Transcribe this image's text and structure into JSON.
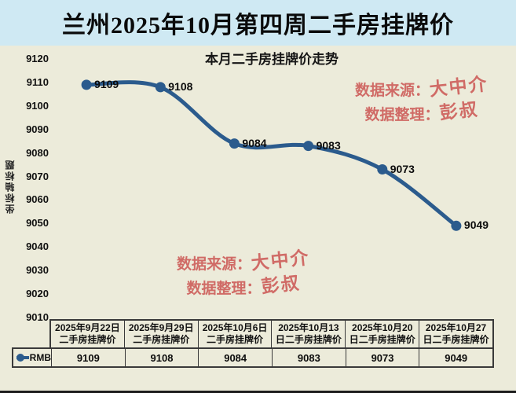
{
  "header": {
    "title": "兰州2025年10月第四周二手房挂牌价"
  },
  "chart_data": {
    "type": "line",
    "title": "本月二手房挂牌价走势",
    "y_axis_title": "坐标轴标题",
    "legend": "RMB",
    "legend_position": "data-table-left",
    "grid": false,
    "categories": [
      "2025年9月22日\n二手房挂牌价",
      "2025年9月29日\n二手房挂牌价",
      "2025年10月6日\n二手房挂牌价",
      "2025年10月13\n日二手房挂牌价",
      "2025年10月20\n日二手房挂牌价",
      "2025年10月27\n日二手房挂牌价"
    ],
    "values": [
      9109,
      9108,
      9084,
      9083,
      9073,
      9049
    ],
    "yticks": [
      9120,
      9110,
      9100,
      9090,
      9080,
      9070,
      9060,
      9050,
      9040,
      9030,
      9020,
      9010
    ],
    "ylim": [
      9010,
      9120
    ],
    "line_color": "#2b5b8d"
  },
  "watermark": {
    "source_label": "数据来源：",
    "source_value": "大中介",
    "compiler_label": "数据整理：",
    "compiler_value": "彭叔"
  },
  "colors": {
    "title_strip_bg": "#cfe9f3",
    "chart_bg": "#ecebda",
    "line": "#2b5b8d",
    "watermark_text": "#d06b66",
    "table_border": "#3a3a3a"
  }
}
